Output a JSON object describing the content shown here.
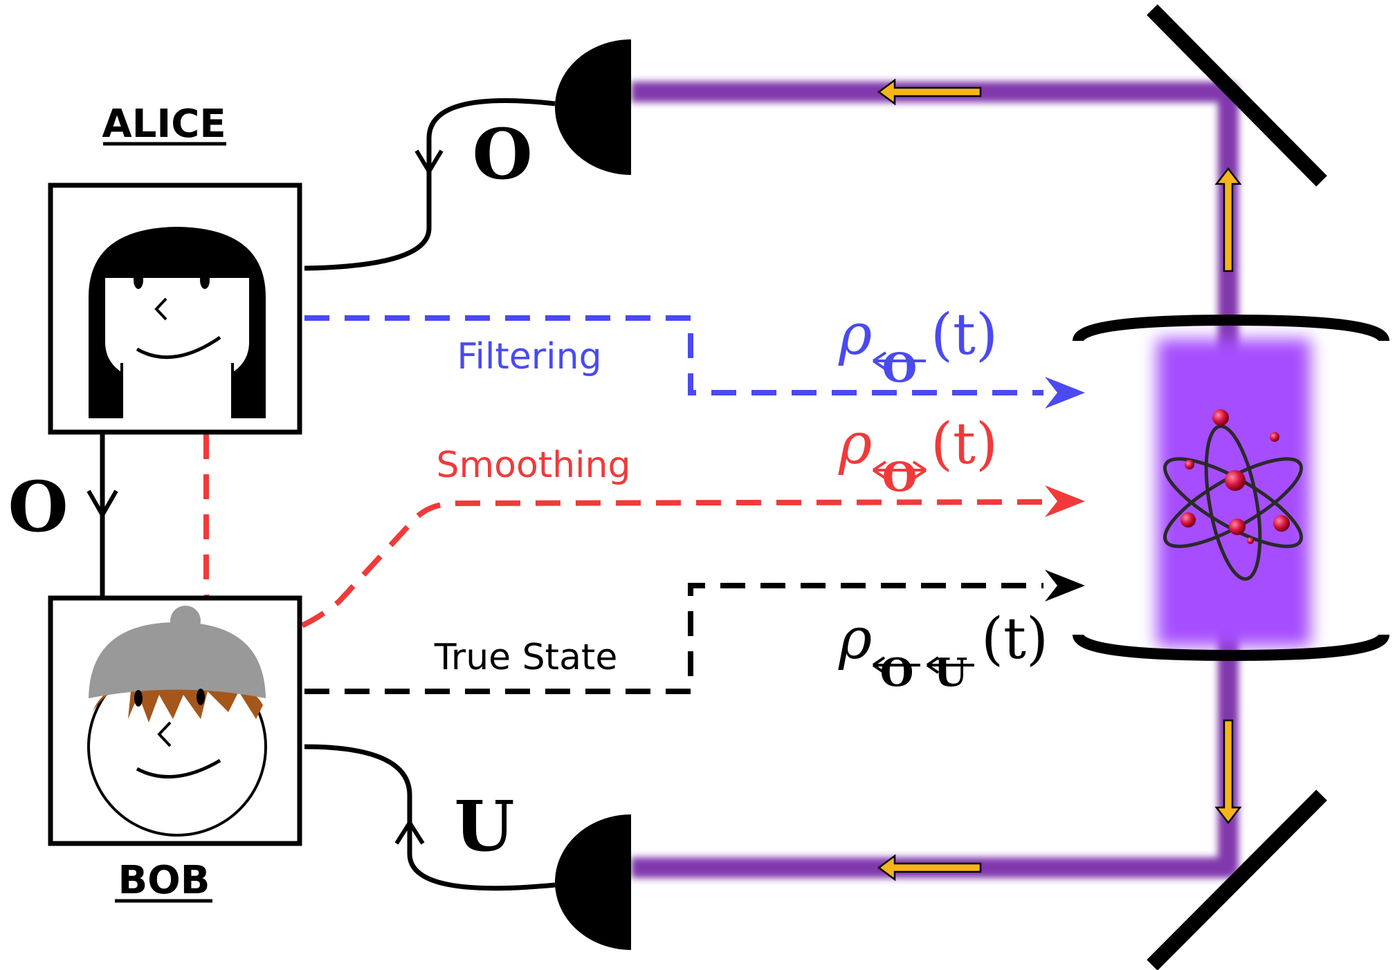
{
  "labels": {
    "alice": "ALICE",
    "bob": "BOB",
    "measurement_o": "O",
    "measurement_o_left": "O",
    "measurement_u": "U",
    "filtering": "Filtering",
    "smoothing": "Smoothing",
    "true_state": "True State"
  },
  "states": {
    "filtering": {
      "symbol": "ρ",
      "subscript": "O",
      "arg": "(t)"
    },
    "smoothing": {
      "symbol": "ρ",
      "subscript": "O",
      "arg": "(t)"
    },
    "true_state": {
      "symbol": "ρ",
      "subscript_1": "O",
      "subscript_2": "U",
      "arg": "(t)"
    }
  },
  "colors": {
    "filtering": "#4a4af0",
    "smoothing": "#f03a3a",
    "true_state": "#000000",
    "laser_beam": "#7a2fa8",
    "cavity_field": "#a64dff",
    "flux_arrow": "#f5b51b",
    "atom": "#d9163f",
    "hat": "#999999",
    "bob_hair": "#a5561a"
  }
}
